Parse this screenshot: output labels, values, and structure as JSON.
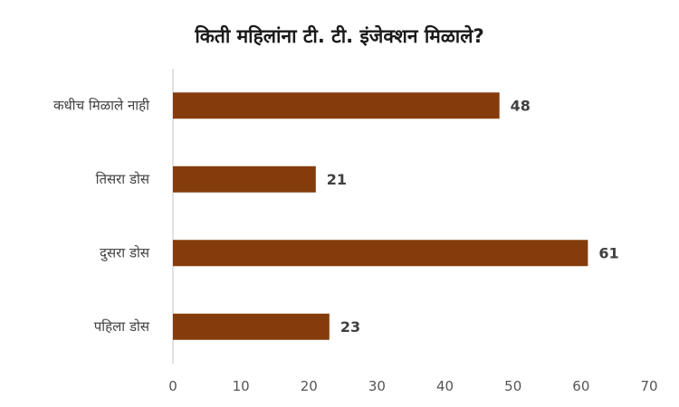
{
  "chart_data": {
    "type": "bar",
    "orientation": "horizontal",
    "title": "किती महिलांना टी. टी. इंजेक्शन मिळाले?",
    "categories": [
      "कधीच मिळाले नाही",
      "तिसरा डोस",
      "दुसरा डोस",
      "पहिला डोस"
    ],
    "series": [
      {
        "values": [
          48,
          21,
          61,
          23
        ],
        "color": "#843C0C"
      }
    ],
    "xlim": [
      0,
      70
    ],
    "xticks": [
      0,
      10,
      20,
      30,
      40,
      50,
      60,
      70
    ],
    "grid": false,
    "legend": "none"
  }
}
